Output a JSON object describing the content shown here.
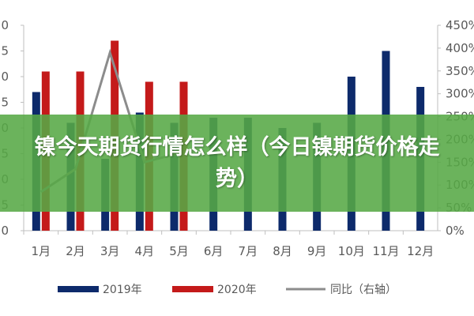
{
  "banner": {
    "title": "镍今天期货行情怎么样（今日镍期货价格走势）"
  },
  "colors": {
    "series_2019": "#0d2a6b",
    "series_2020": "#c41a1a",
    "series_yoy": "#8c8c8c",
    "banner_bg": "#56a846",
    "axis": "#bfbfbf",
    "text": "#595959"
  },
  "chart_data": {
    "type": "bar",
    "categories": [
      "1月",
      "2月",
      "3月",
      "4月",
      "5月",
      "6月",
      "7月",
      "8月",
      "9月",
      "10月",
      "11月",
      "12月"
    ],
    "left_axis": {
      "ticks": [
        "0",
        "5",
        "0",
        "5",
        "0",
        "5",
        "0",
        "5",
        "0"
      ],
      "ylim": [
        0,
        40
      ]
    },
    "right_axis": {
      "ticks": [
        "0%",
        "50%",
        "100%",
        "150%",
        "200%",
        "250%",
        "300%",
        "350%",
        "400%",
        "450%"
      ],
      "ylim": [
        0,
        450
      ]
    },
    "series": [
      {
        "name": "2019年",
        "type": "bar",
        "axis": "left",
        "values": [
          27,
          21,
          14,
          23,
          21,
          22,
          22,
          20,
          21,
          30,
          35,
          28
        ]
      },
      {
        "name": "2020年",
        "type": "bar",
        "axis": "left",
        "values": [
          31,
          31,
          37,
          29,
          29,
          null,
          null,
          null,
          null,
          null,
          null,
          null
        ]
      },
      {
        "name": "同比（右轴）",
        "type": "line",
        "axis": "right",
        "values": [
          85,
          135,
          390,
          150,
          170,
          null,
          null,
          null,
          null,
          null,
          null,
          null
        ]
      }
    ],
    "legend_position": "bottom"
  }
}
